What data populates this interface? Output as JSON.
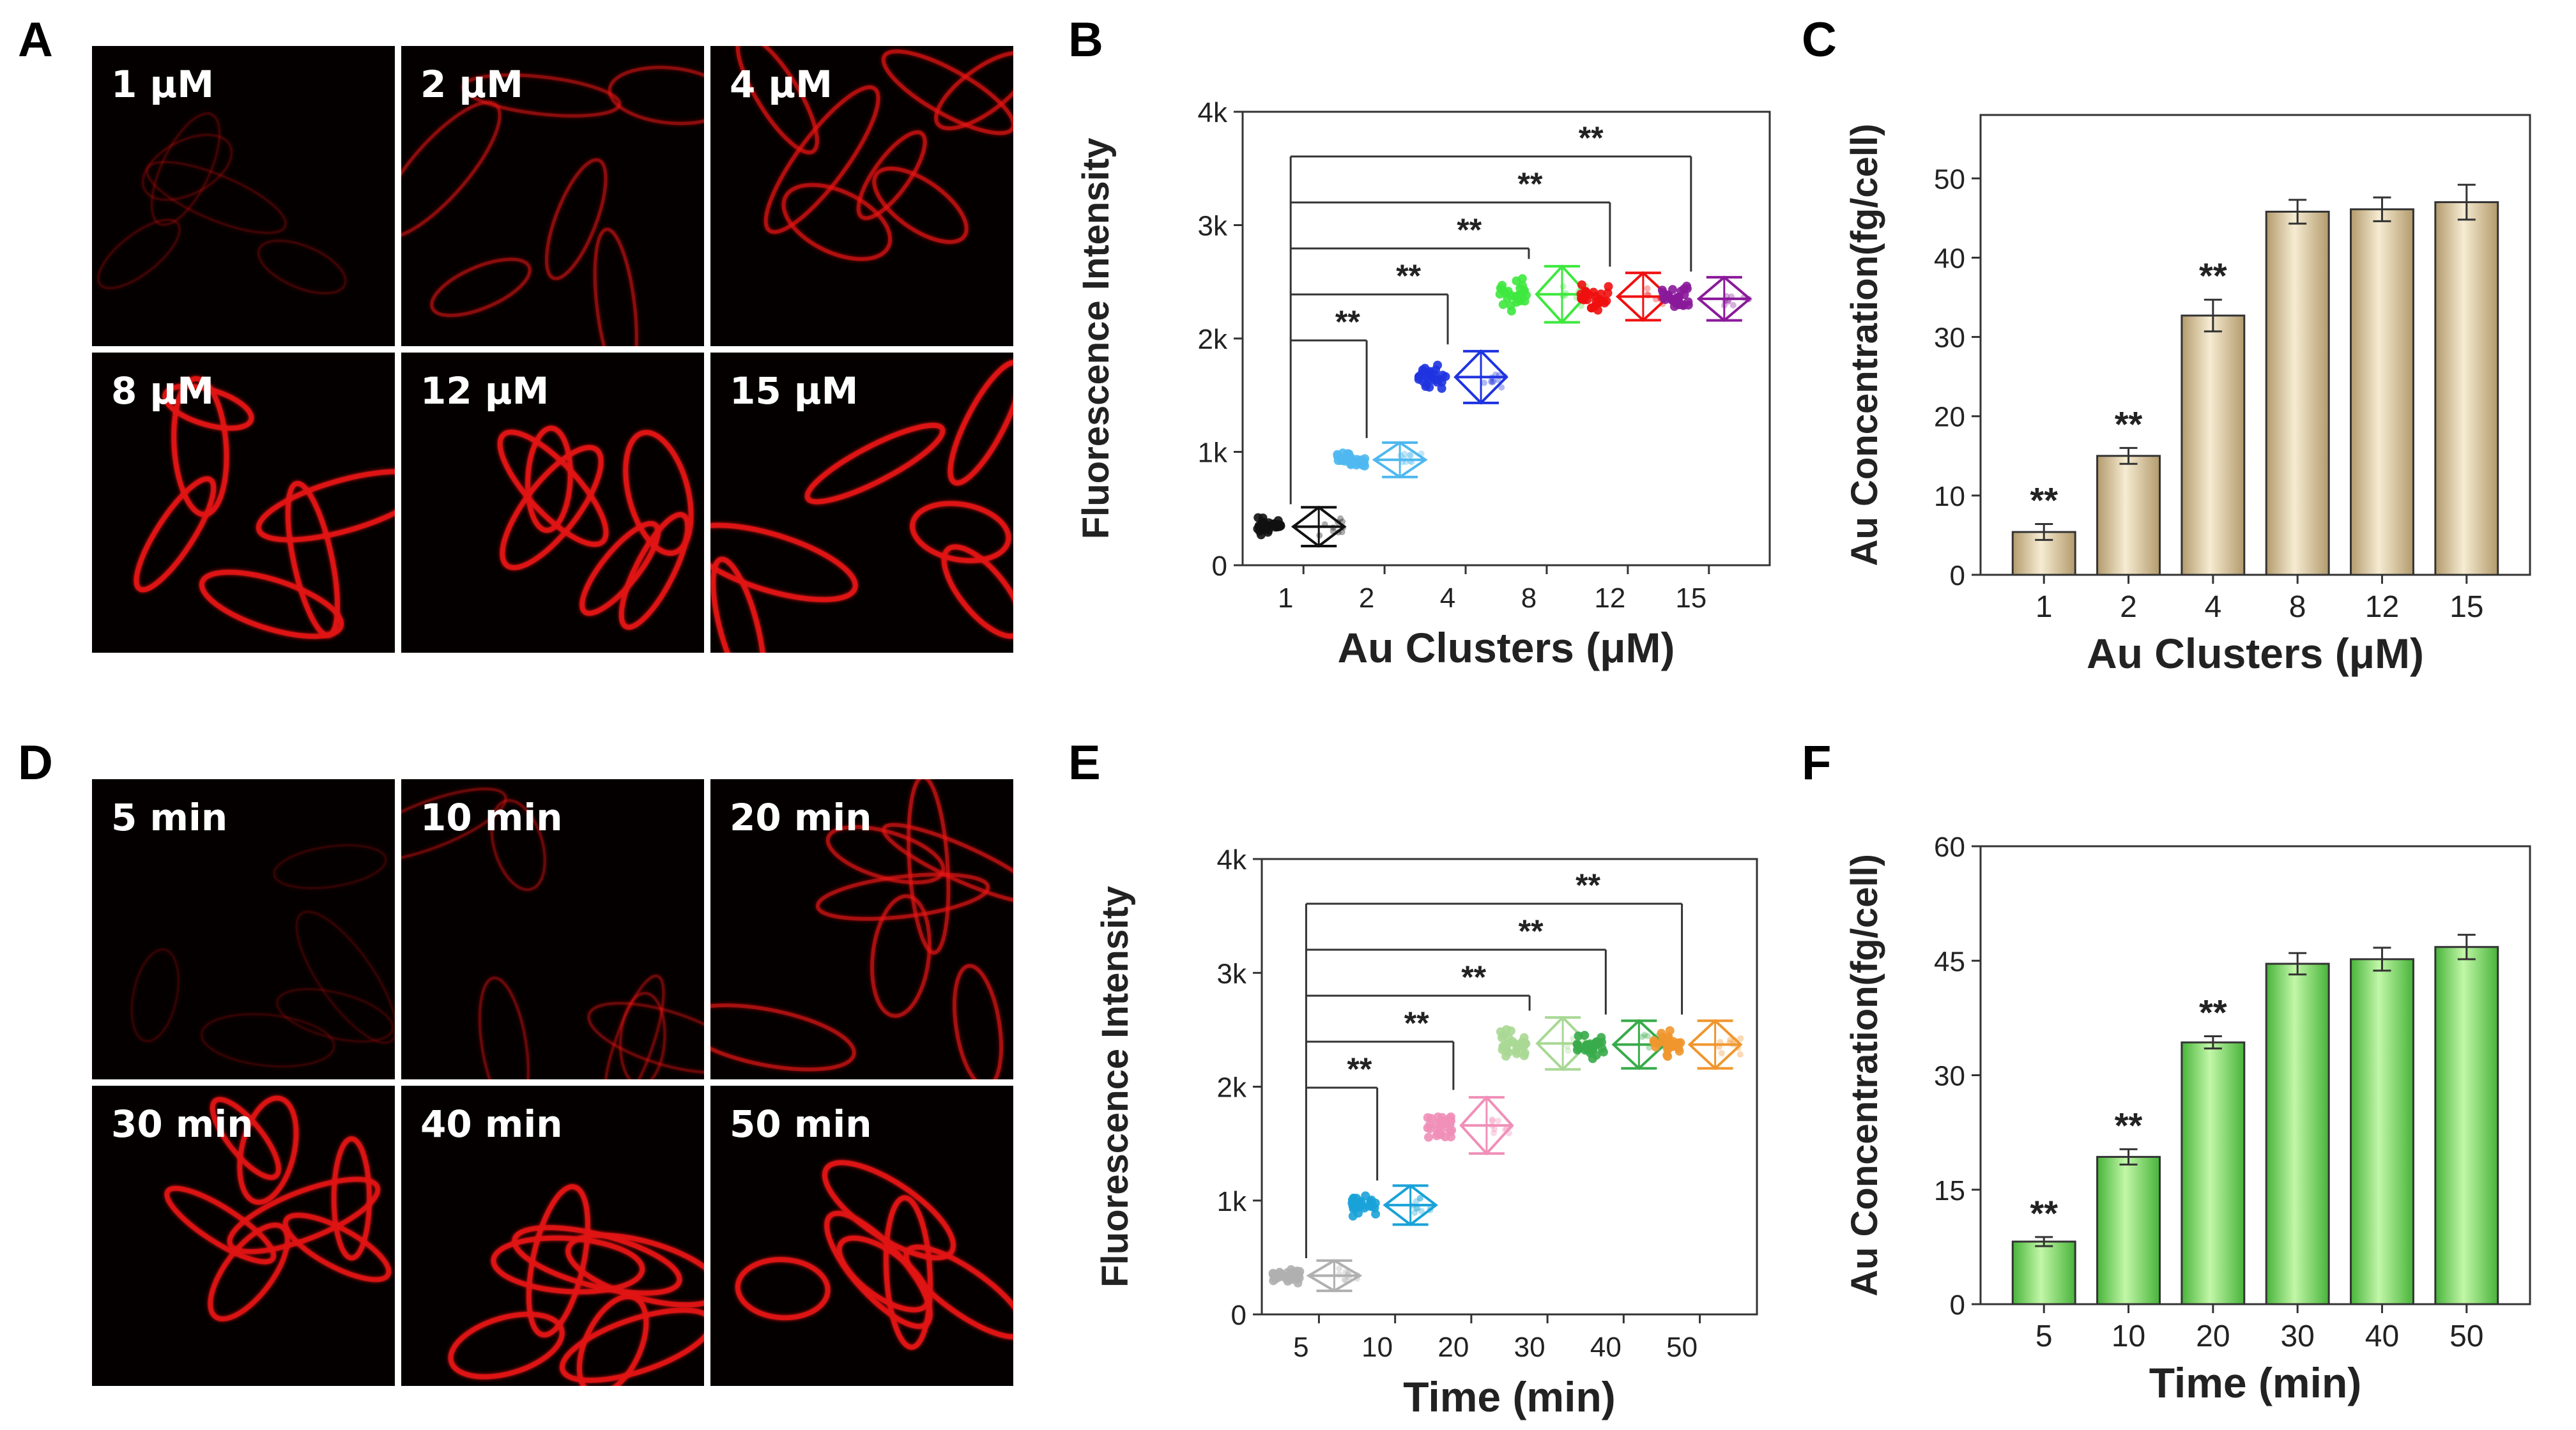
{
  "panel_letters": {
    "A": "A",
    "B": "B",
    "C": "C",
    "D": "D",
    "E": "E",
    "F": "F"
  },
  "micrographs": {
    "A": {
      "labels": [
        "1 μM",
        "2 μM",
        "4 μM",
        "8 μM",
        "12 μM",
        "15 μM"
      ],
      "relative_brightness": [
        0.18,
        0.45,
        0.62,
        0.95,
        0.95,
        0.95
      ],
      "cell_color": "#e01414"
    },
    "D": {
      "labels": [
        "5 min",
        "10 min",
        "20 min",
        "30 min",
        "40 min",
        "50 min"
      ],
      "relative_brightness": [
        0.14,
        0.32,
        0.58,
        0.92,
        0.95,
        0.95
      ],
      "cell_color": "#e01414"
    }
  },
  "chart_data": [
    {
      "id": "B",
      "type": "scatter",
      "title": "",
      "xlabel": "Au Clusters (μM)",
      "ylabel": "Fluorescence Intensity",
      "categories": [
        "1",
        "2",
        "4",
        "8",
        "12",
        "15"
      ],
      "means": [
        340,
        930,
        1660,
        2390,
        2370,
        2350
      ],
      "sd": [
        90,
        80,
        120,
        130,
        110,
        100
      ],
      "colors": [
        "#111111",
        "#4fb8ef",
        "#1f33e0",
        "#3ee83e",
        "#f01010",
        "#8a1a9a"
      ],
      "ylim": [
        0,
        4000
      ],
      "yticks": [
        0,
        1000,
        2000,
        3000,
        4000
      ],
      "ytick_labels": [
        "0",
        "1k",
        "2k",
        "3k",
        "4k"
      ],
      "significance": {
        "marker": "**",
        "reference": "1",
        "compared": [
          "2",
          "4",
          "8",
          "12",
          "15"
        ]
      }
    },
    {
      "id": "C",
      "type": "bar",
      "title": "",
      "xlabel": "Au Clusters (μM)",
      "ylabel": "Au Concentration(fg/cell)",
      "categories": [
        "1",
        "2",
        "4",
        "8",
        "12",
        "15"
      ],
      "values": [
        5.4,
        15.0,
        32.7,
        45.8,
        46.1,
        47.0
      ],
      "errors": [
        1.0,
        1.0,
        2.0,
        1.5,
        1.5,
        2.2
      ],
      "ylim": [
        0,
        58
      ],
      "yticks": [
        0,
        10,
        20,
        30,
        40,
        50
      ],
      "significance": {
        "marker": "**",
        "bars": [
          "1",
          "2",
          "4"
        ]
      },
      "bar_color_top": "#f6ecd2",
      "bar_color_bottom": "#b39a6c"
    },
    {
      "id": "E",
      "type": "scatter",
      "title": "",
      "xlabel": "Time (min)",
      "ylabel": "Fluorescence Intensity",
      "categories": [
        "5",
        "10",
        "20",
        "30",
        "40",
        "50"
      ],
      "means": [
        340,
        960,
        1660,
        2380,
        2370,
        2370
      ],
      "sd": [
        70,
        90,
        130,
        120,
        110,
        110
      ],
      "colors": [
        "#b0b0b0",
        "#1aa2d8",
        "#f08fb8",
        "#a8d894",
        "#38ab4a",
        "#f0962e"
      ],
      "ylim": [
        0,
        4000
      ],
      "yticks": [
        0,
        1000,
        2000,
        3000,
        4000
      ],
      "ytick_labels": [
        "0",
        "1k",
        "2k",
        "3k",
        "4k"
      ],
      "significance": {
        "marker": "**",
        "reference": "5",
        "compared": [
          "10",
          "20",
          "30",
          "40",
          "50"
        ]
      }
    },
    {
      "id": "F",
      "type": "bar",
      "title": "",
      "xlabel": "Time (min)",
      "ylabel": "Au Concentration(fg/cell)",
      "categories": [
        "5",
        "10",
        "20",
        "30",
        "40",
        "50"
      ],
      "values": [
        8.2,
        19.3,
        34.3,
        44.6,
        45.2,
        46.8
      ],
      "errors": [
        0.6,
        1.0,
        0.8,
        1.4,
        1.5,
        1.6
      ],
      "ylim": [
        0,
        60
      ],
      "yticks": [
        0,
        15,
        30,
        45,
        60
      ],
      "significance": {
        "marker": "**",
        "bars": [
          "5",
          "10",
          "20"
        ]
      },
      "bar_color_top": "#c2f7a8",
      "bar_color_bottom": "#48b43a"
    }
  ]
}
